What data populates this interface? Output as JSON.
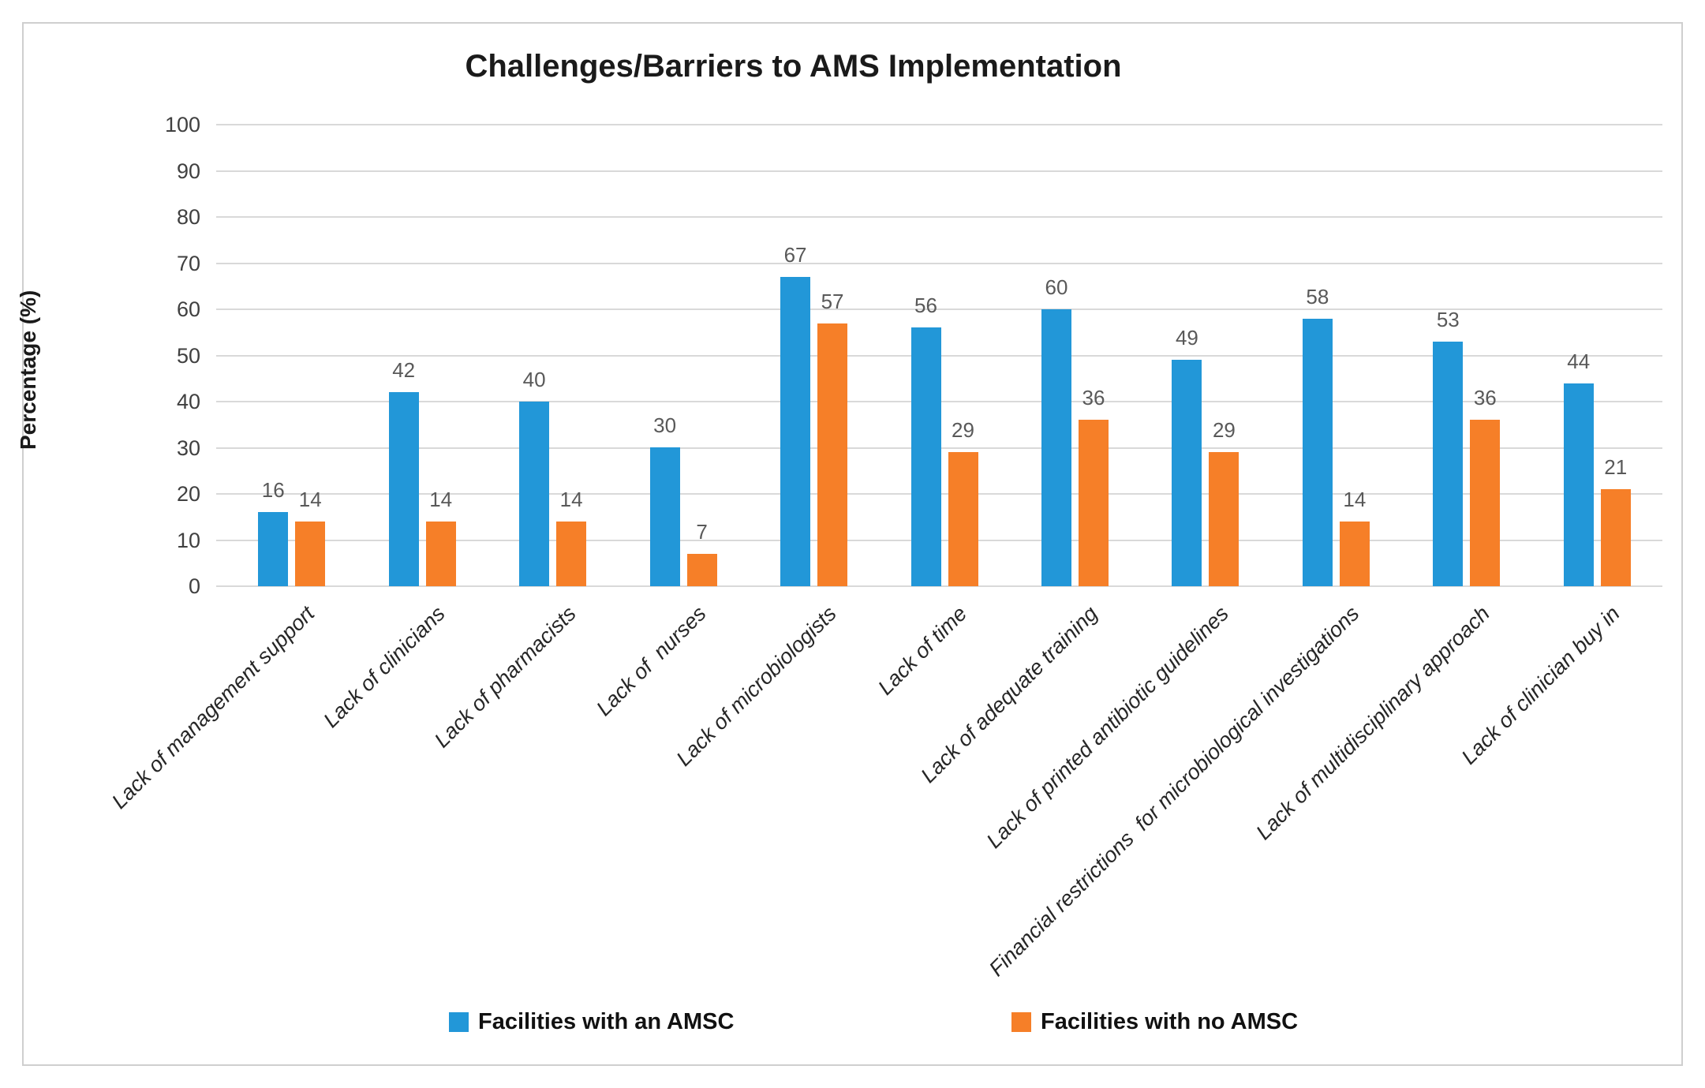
{
  "chart_data": {
    "type": "bar",
    "title": "Challenges/Barriers to AMS Implementation",
    "xlabel": "",
    "ylabel": "Percentage (%)",
    "ylim": [
      0,
      100
    ],
    "ytick_step": 10,
    "yticks": [
      0,
      10,
      20,
      30,
      40,
      50,
      60,
      70,
      80,
      90,
      100
    ],
    "grid": true,
    "legend_position": "bottom",
    "categories": [
      "Lack of management support",
      "Lack of clinicians",
      "Lack of pharmacists",
      "Lack of  nurses",
      "Lack of microbiologists",
      "Lack of time",
      "Lack of adequate training",
      "Lack of printed antibiotic guidelines",
      "Financial restrictions  for microbiological investigations",
      "Lack of multidisciplinary approach",
      "Lack of clinician buy in"
    ],
    "series": [
      {
        "name": "Facilities with an AMSC",
        "color": "#2297d8",
        "values": [
          16,
          42,
          40,
          30,
          67,
          56,
          60,
          49,
          58,
          53,
          44
        ]
      },
      {
        "name": "Facilities with no AMSC",
        "color": "#f67f28",
        "values": [
          14,
          14,
          14,
          7,
          57,
          29,
          36,
          29,
          14,
          36,
          21
        ]
      }
    ],
    "colors": {
      "gridline": "#d9d9d9",
      "tick_text": "#404040",
      "value_text": "#595959",
      "category_text": "#262626",
      "title_text": "#1a1a1a"
    }
  }
}
